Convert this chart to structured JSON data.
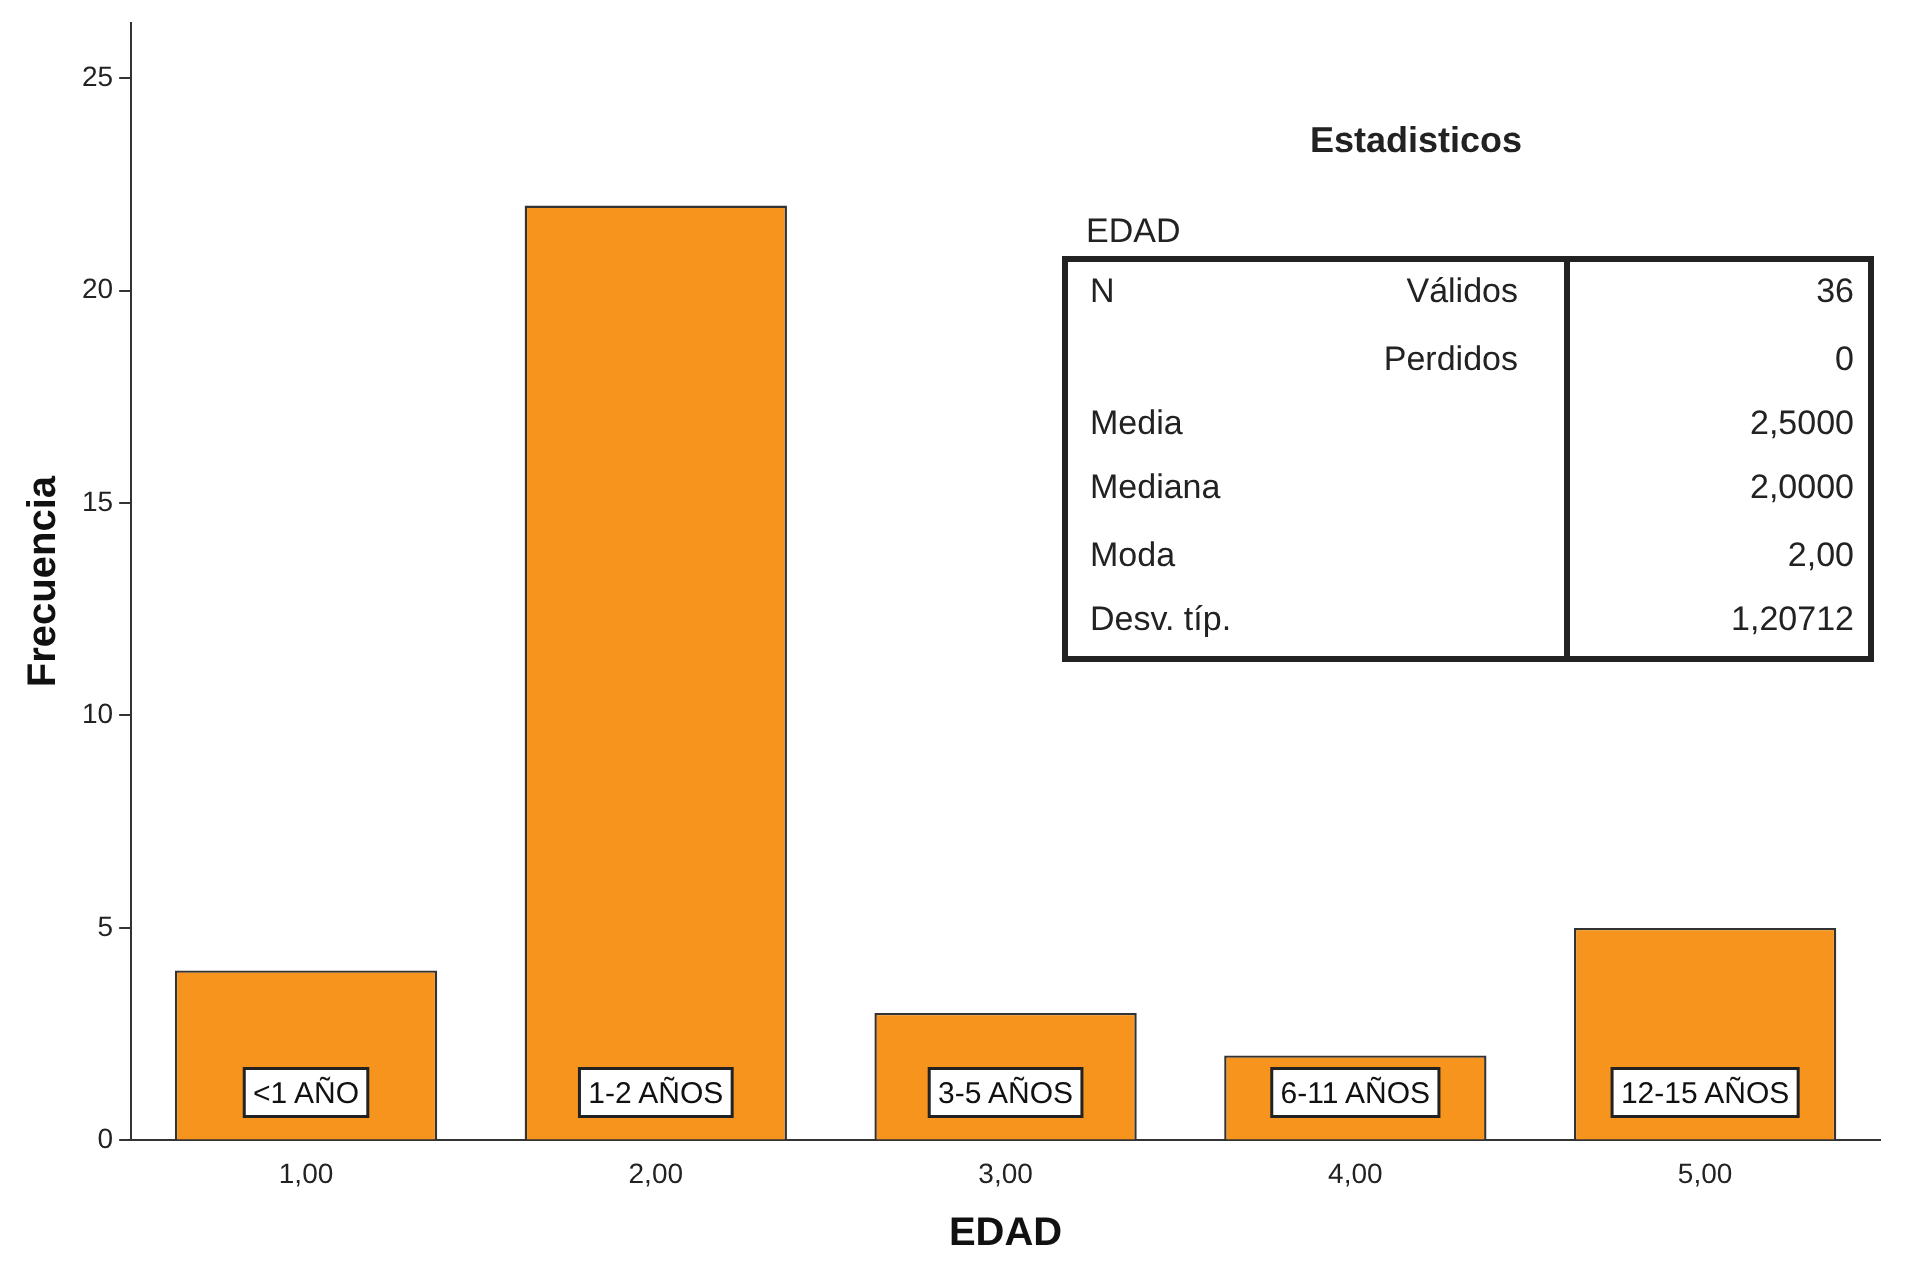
{
  "chart_data": {
    "type": "bar",
    "xlabel": "EDAD",
    "ylabel": "Frecuencia",
    "categories": [
      "1,00",
      "2,00",
      "3,00",
      "4,00",
      "5,00"
    ],
    "values": [
      4,
      22,
      3,
      2,
      5
    ],
    "color": "#f7941d",
    "ylim": [
      0,
      26.3
    ],
    "yticks": [
      0,
      5,
      10,
      15,
      20,
      25
    ],
    "grid": false,
    "legend": false,
    "annotations": [
      "<1 AÑO",
      "1-2 AÑOS",
      "3-5 AÑOS",
      "6-11 AÑOS",
      "12-15 AÑOS",
      "Estadisticos",
      "EDAD",
      "N",
      "Válidos",
      "36",
      "Perdidos",
      "0",
      "Media",
      "2,5000",
      "Mediana",
      "2,0000",
      "Moda",
      "2,00",
      "Desv. típ.",
      "1,20712"
    ]
  }
}
